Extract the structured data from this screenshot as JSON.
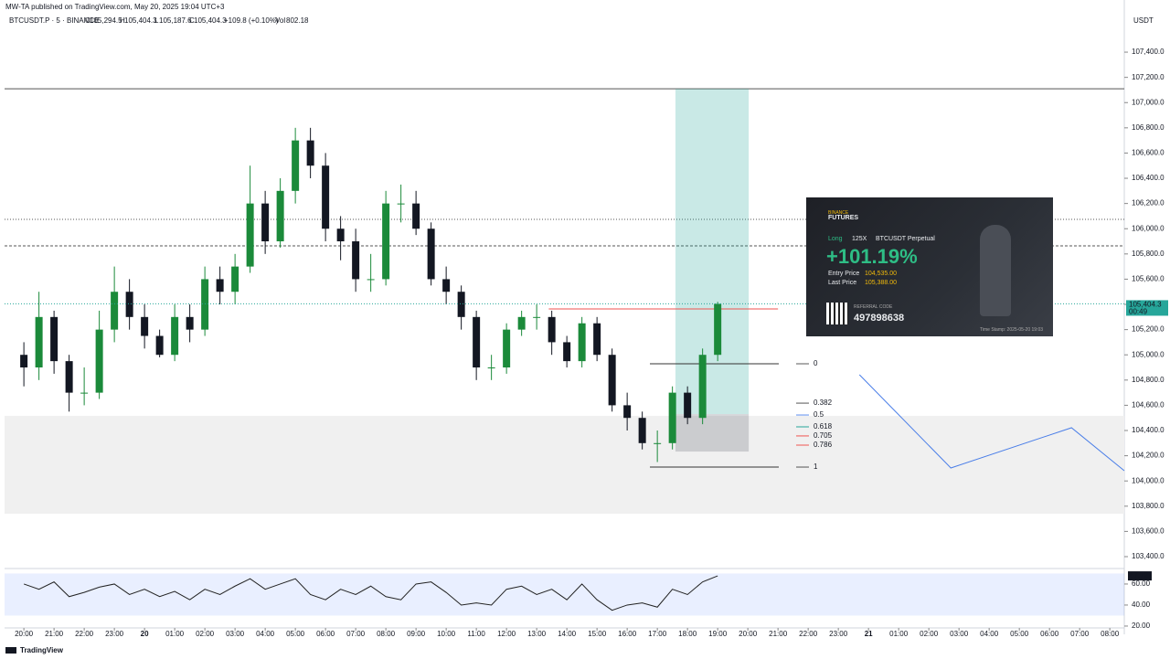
{
  "header": {
    "published": "MW-TA published on TradingView.com, May 20, 2025 19:04 UTC+3",
    "symbol": "BTCUSDT.P · 5 · BINANCE",
    "legend": [
      {
        "key": "O",
        "value": "105,294.5"
      },
      {
        "key": "H",
        "value": "105,404.3"
      },
      {
        "key": "L",
        "value": "105,187.6"
      },
      {
        "key": "C",
        "value": "105,404.3"
      }
    ],
    "change": "+109.8 (+0.10%)",
    "volume_key": "Vol",
    "volume": "802.18",
    "currency": "USDT",
    "footer": "TradingView",
    "last_price_label": "105,404.3",
    "countdown": "00:49"
  },
  "chart_data": {
    "type": "candlestick",
    "up_color": "#1b8a3a",
    "down_color": "#131722",
    "x": [
      0,
      0.5,
      1,
      1.5,
      2,
      2.5,
      3,
      3.5,
      4,
      4.5,
      5,
      5.5,
      6,
      6.5,
      7,
      7.5,
      8,
      8.5,
      9,
      9.5,
      10,
      10.5,
      11,
      11.5,
      12,
      12.5,
      13,
      13.5,
      14,
      14.5,
      15,
      15.5,
      16,
      16.5,
      17,
      17.5,
      18,
      18.5,
      19,
      19.5,
      20,
      20.5,
      21,
      21.5,
      22,
      22.5,
      23
    ],
    "open": [
      105000,
      104900,
      105300,
      104950,
      104700,
      104700,
      105200,
      105500,
      105300,
      105150,
      105000,
      105300,
      105200,
      105600,
      105500,
      105700,
      106200,
      105900,
      106300,
      106700,
      106500,
      106000,
      105900,
      105600,
      105600,
      106200,
      106200,
      106000,
      105600,
      105500,
      105300,
      104900,
      104900,
      105200,
      105300,
      105300,
      105100,
      104950,
      105250,
      105000,
      104600,
      104500,
      104300,
      104300,
      104700,
      104500,
      105000
    ],
    "high": [
      105100,
      105500,
      105350,
      105000,
      104900,
      105350,
      105700,
      105600,
      105400,
      105200,
      105400,
      105400,
      105700,
      105700,
      105800,
      106500,
      106300,
      106400,
      106800,
      106800,
      106600,
      106100,
      106000,
      105800,
      106300,
      106350,
      106300,
      106050,
      105700,
      105550,
      105350,
      105000,
      105250,
      105350,
      105400,
      105350,
      105150,
      105300,
      105300,
      105050,
      104700,
      104550,
      104400,
      104750,
      104750,
      105050,
      105420
    ],
    "low": [
      104750,
      104800,
      104850,
      104550,
      104600,
      104650,
      105100,
      105200,
      105050,
      104980,
      104950,
      105100,
      105150,
      105400,
      105400,
      105650,
      105800,
      105850,
      106200,
      106400,
      105900,
      105750,
      105500,
      105500,
      105550,
      106050,
      105950,
      105550,
      105400,
      105200,
      104800,
      104800,
      104850,
      105150,
      105200,
      105000,
      104900,
      104900,
      104950,
      104550,
      104400,
      104250,
      104150,
      104250,
      104450,
      104450,
      104950
    ],
    "close": [
      104900,
      105300,
      104950,
      104700,
      104700,
      105200,
      105500,
      105300,
      105150,
      105000,
      105300,
      105200,
      105600,
      105500,
      105700,
      106200,
      105900,
      106300,
      106700,
      106500,
      106000,
      105900,
      105600,
      105600,
      106200,
      106200,
      106000,
      105600,
      105500,
      105300,
      104900,
      104900,
      105200,
      105300,
      105300,
      105100,
      104950,
      105250,
      105000,
      104600,
      104500,
      104300,
      104300,
      104700,
      104500,
      105000,
      105404.3
    ],
    "xlim": [
      -0.64,
      36.48
    ],
    "xticks": [
      {
        "value": 0,
        "label": "20:00"
      },
      {
        "value": 1,
        "label": "21:00"
      },
      {
        "value": 2,
        "label": "22:00"
      },
      {
        "value": 3,
        "label": "23:00"
      },
      {
        "value": 4,
        "label": "20"
      },
      {
        "value": 5,
        "label": "01:00"
      },
      {
        "value": 6,
        "label": "02:00"
      },
      {
        "value": 7,
        "label": "03:00"
      },
      {
        "value": 8,
        "label": "04:00"
      },
      {
        "value": 9,
        "label": "05:00"
      },
      {
        "value": 10,
        "label": "06:00"
      },
      {
        "value": 11,
        "label": "07:00"
      },
      {
        "value": 12,
        "label": "08:00"
      },
      {
        "value": 13,
        "label": "09:00"
      },
      {
        "value": 14,
        "label": "10:00"
      },
      {
        "value": 15,
        "label": "11:00"
      },
      {
        "value": 16,
        "label": "12:00"
      },
      {
        "value": 17,
        "label": "13:00"
      },
      {
        "value": 18,
        "label": "14:00"
      },
      {
        "value": 19,
        "label": "15:00"
      },
      {
        "value": 20,
        "label": "16:00"
      },
      {
        "value": 21,
        "label": "17:00"
      },
      {
        "value": 22,
        "label": "18:00"
      },
      {
        "value": 23,
        "label": "19:00"
      },
      {
        "value": 24,
        "label": "20:00"
      },
      {
        "value": 25,
        "label": "21:00"
      },
      {
        "value": 26,
        "label": "22:00"
      },
      {
        "value": 27,
        "label": "23:00"
      },
      {
        "value": 28,
        "label": "21"
      },
      {
        "value": 29,
        "label": "01:00"
      },
      {
        "value": 30,
        "label": "02:00"
      },
      {
        "value": 31,
        "label": "03:00"
      },
      {
        "value": 32,
        "label": "04:00"
      },
      {
        "value": 33,
        "label": "05:00"
      },
      {
        "value": 34,
        "label": "06:00"
      },
      {
        "value": 35,
        "label": "07:00"
      },
      {
        "value": 36,
        "label": "08:00"
      }
    ],
    "ylim": [
      103313,
      107712
    ],
    "yticks": [
      {
        "value": 103400,
        "label": "103,400.0"
      },
      {
        "value": 103600,
        "label": "103,600.0"
      },
      {
        "value": 103800,
        "label": "103,800.0"
      },
      {
        "value": 104000,
        "label": "104,000.0"
      },
      {
        "value": 104200,
        "label": "104,200.0"
      },
      {
        "value": 104400,
        "label": "104,400.0"
      },
      {
        "value": 104600,
        "label": "104,600.0"
      },
      {
        "value": 104800,
        "label": "104,800.0"
      },
      {
        "value": 105000,
        "label": "105,000.0"
      },
      {
        "value": 105200,
        "label": "105,200.0"
      },
      {
        "value": 105400,
        "label": "105,400.0"
      },
      {
        "value": 105600,
        "label": "105,600.0"
      },
      {
        "value": 105800,
        "label": "105,800.0"
      },
      {
        "value": 106000,
        "label": "106,000.0"
      },
      {
        "value": 106200,
        "label": "106,200.0"
      },
      {
        "value": 106400,
        "label": "106,400.0"
      },
      {
        "value": 106600,
        "label": "106,600.0"
      },
      {
        "value": 106800,
        "label": "106,800.0"
      },
      {
        "value": 107000,
        "label": "107,000.0"
      },
      {
        "value": 107200,
        "label": "107,200.0"
      },
      {
        "value": 107400,
        "label": "107,400.0"
      }
    ],
    "grid": false,
    "hlines": [
      {
        "price": 107110,
        "style": "solid"
      },
      {
        "price": 106074,
        "style": "dotted"
      },
      {
        "price": 105864,
        "style": "dashed"
      }
    ],
    "zone": [
      104516,
      103741
    ],
    "red_line": {
      "price": 105364,
      "x": [
        17.4,
        25.0
      ]
    },
    "position": {
      "x": [
        21.6,
        24.03
      ],
      "target": 107110,
      "entry": 104530,
      "stop": 104233
    },
    "fib": [
      {
        "label": "0",
        "price": 104929,
        "color": "#555555"
      },
      {
        "label": "0.382",
        "price": 104617,
        "color": "#555555"
      },
      {
        "label": "0.5",
        "price": 104523,
        "color": "#5b8def"
      },
      {
        "label": "0.618",
        "price": 104429,
        "color": "#26a69a"
      },
      {
        "label": "0.705",
        "price": 104357,
        "color": "#ef5350"
      },
      {
        "label": "0.786",
        "price": 104284,
        "color": "#ef5350"
      },
      {
        "label": "1",
        "price": 104110,
        "color": "#555555"
      }
    ],
    "projection": {
      "color": "#4a7ee8",
      "x": [
        27.7,
        30.73,
        34.73,
        36.48
      ],
      "values": [
        104842,
        104103,
        104422,
        104081
      ]
    },
    "rsi": {
      "color": "#222222",
      "values": [
        60,
        55,
        62,
        48,
        52,
        57,
        60,
        50,
        55,
        48,
        53,
        45,
        55,
        50,
        58,
        65,
        55,
        60,
        65,
        50,
        45,
        55,
        50,
        58,
        48,
        45,
        60,
        62,
        52,
        40,
        42,
        40,
        55,
        58,
        50,
        55,
        45,
        60,
        45,
        35,
        40,
        42,
        38,
        55,
        50,
        62,
        67.72
      ],
      "ylim": [
        19.1,
        73
      ],
      "band": [
        30,
        70
      ],
      "yticks": [
        {
          "value": 60,
          "label": "60.00"
        },
        {
          "value": 40,
          "label": "40.00"
        },
        {
          "value": 20,
          "label": "20.00"
        }
      ]
    }
  },
  "share_card": {
    "brand": "BINANCE",
    "product": "FUTURES",
    "side": "Long",
    "leverage": "125X",
    "contract": "BTCUSDT Perpetual",
    "roi": "+101.19%",
    "entry_key": "Entry Price",
    "entry": "104,535.00",
    "last_key": "Last Price",
    "last": "105,388.00",
    "referral_key": "REFERRAL CODE",
    "referral": "497898638",
    "timestamp": "Time Stamp: 2025-05-20 19:03"
  }
}
